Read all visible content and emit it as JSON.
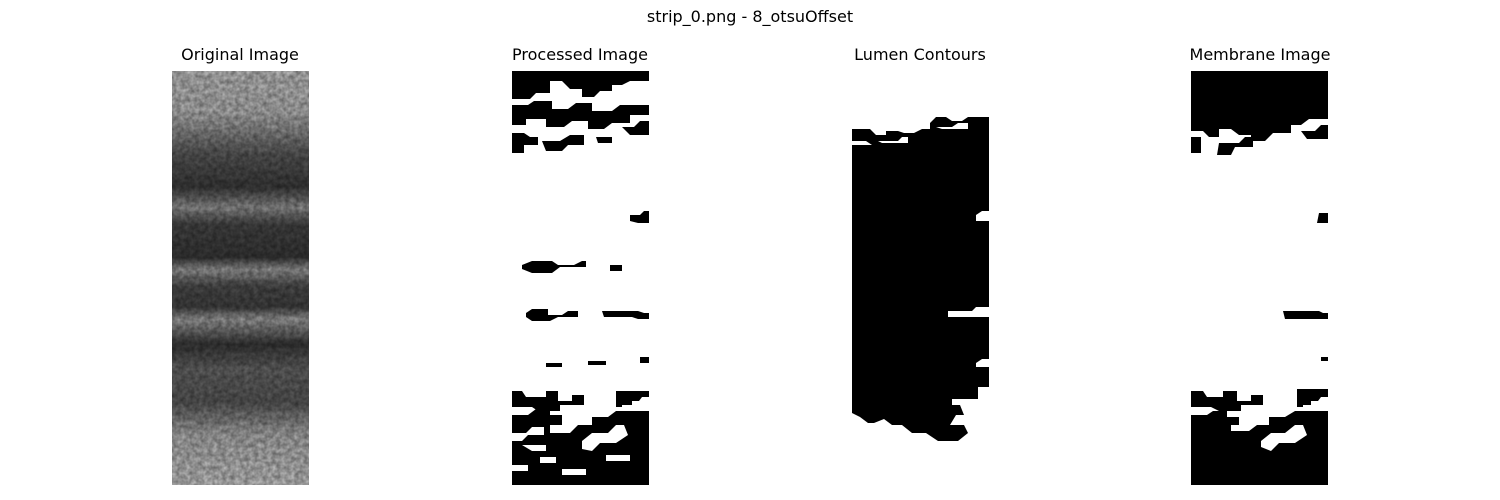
{
  "figure": {
    "title": "strip_0.png - 8_otsuOffset"
  },
  "panels": [
    {
      "title": "Original Image"
    },
    {
      "title": "Processed Image"
    },
    {
      "title": "Lumen Contours"
    },
    {
      "title": "Membrane Image"
    }
  ]
}
